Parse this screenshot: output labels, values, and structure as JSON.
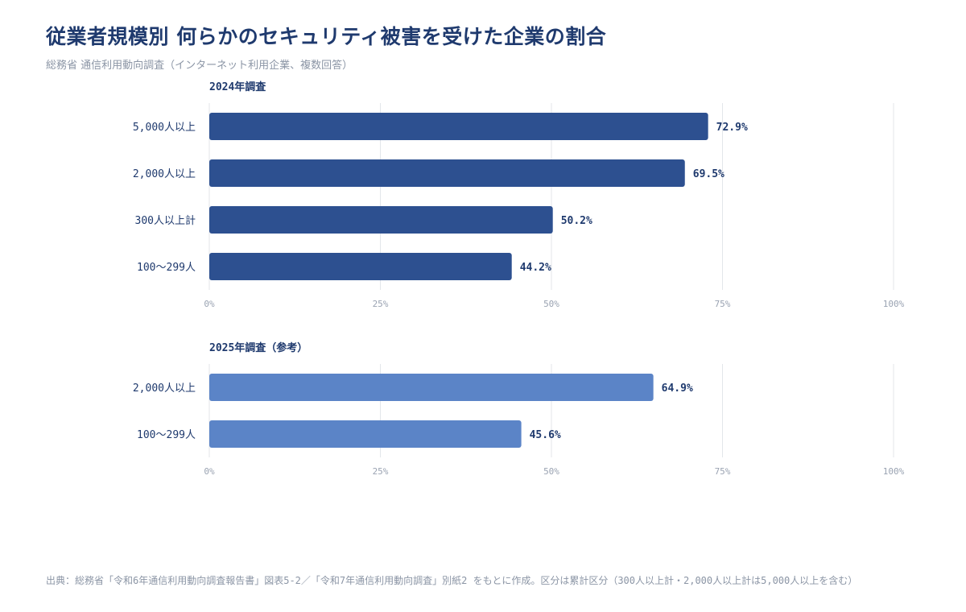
{
  "title": "従業者規模別 何らかのセキュリティ被害を受けた企業の割合",
  "subtitle": "総務省 通信利用動向調査（インターネット利用企業、複数回答）",
  "footer": "出典：総務省「令和6年通信利用動向調査報告書」図表5-2／「令和7年通信利用動向調査」別紙2 をもとに作成。区分は累計区分（300人以上計・2,000人以上計は5,000人以上を含む）",
  "colors": {
    "bar_2024": "#2d5090",
    "bar_2025": "#5b84c7",
    "label_text": "#1f3a6e",
    "tick_text": "#9aa3b2",
    "grid": "#e3e6ea"
  },
  "chart_data": [
    {
      "type": "bar",
      "orientation": "horizontal",
      "title": "2024年調査",
      "categories": [
        "5,000人以上",
        "2,000人以上",
        "300人以上計",
        "100〜299人"
      ],
      "values": [
        72.9,
        69.5,
        50.2,
        44.2
      ],
      "value_labels": [
        "72.9%",
        "69.5%",
        "50.2%",
        "44.2%"
      ],
      "xlim": [
        0,
        100
      ],
      "xticks": [
        "0%",
        "25%",
        "50%",
        "75%",
        "100%"
      ],
      "grid": true
    },
    {
      "type": "bar",
      "orientation": "horizontal",
      "title": "2025年調査（参考）",
      "categories": [
        "2,000人以上",
        "100〜299人"
      ],
      "values": [
        64.9,
        45.6
      ],
      "value_labels": [
        "64.9%",
        "45.6%"
      ],
      "xlim": [
        0,
        100
      ],
      "xticks": [
        "0%",
        "25%",
        "50%",
        "75%",
        "100%"
      ],
      "grid": true
    }
  ]
}
